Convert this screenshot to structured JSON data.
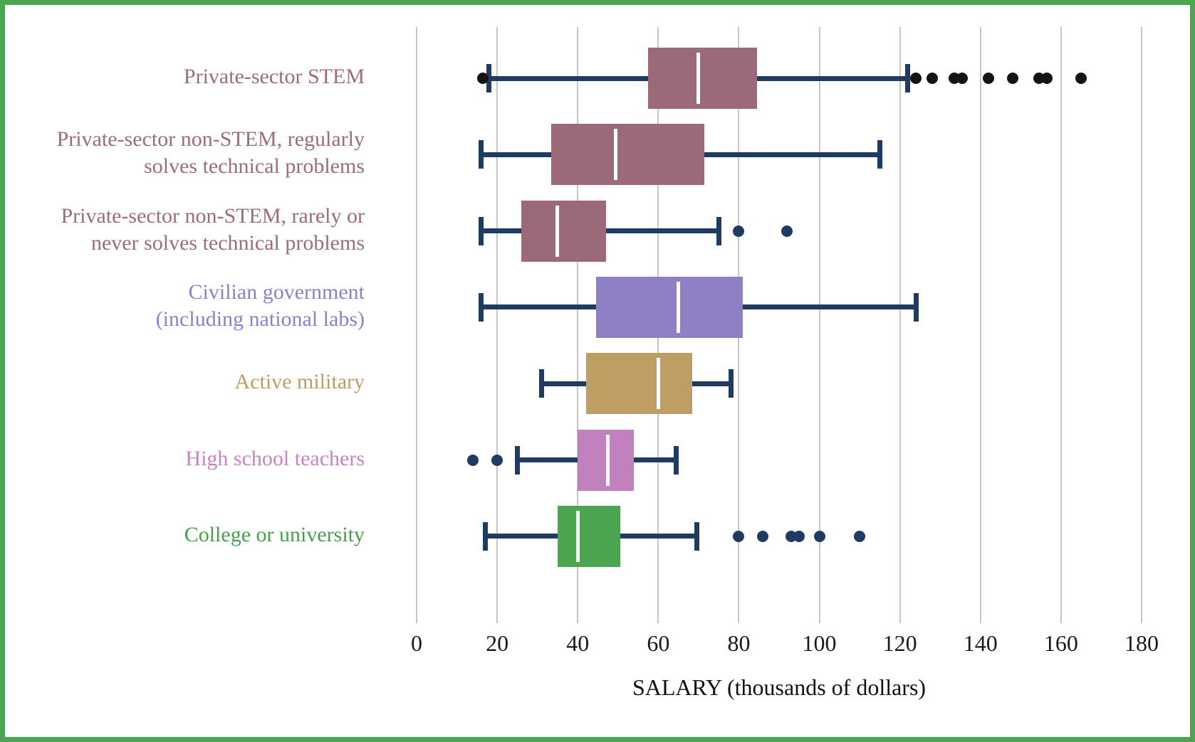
{
  "frame": {
    "border_color": "#4BA552",
    "background": "#ffffff"
  },
  "axis": {
    "title": "SALARY (thousands of dollars)",
    "ticks": [
      0,
      20,
      40,
      60,
      80,
      100,
      120,
      140,
      160,
      180
    ],
    "gridline_color": "#C6C6C6",
    "tick_label_color": "#1a1a1a"
  },
  "chart_data": {
    "type": "boxplot",
    "orientation": "horizontal",
    "title": "",
    "xlabel": "SALARY (thousands of dollars)",
    "ylabel": "",
    "xlim": [
      0,
      180
    ],
    "x_ticks": [
      0,
      20,
      40,
      60,
      80,
      100,
      120,
      140,
      160,
      180
    ],
    "grid": "vertical",
    "whisker_color": "#1F3A63",
    "median_color": "#ffffff",
    "series": [
      {
        "label": "Private-sector STEM",
        "label_lines": [
          "Private-sector STEM"
        ],
        "box_color": "#9A6A79",
        "label_color": "#9B6C7C",
        "outlier_color": "#141414",
        "whisker_low": 18,
        "q1": 57.5,
        "median": 70,
        "q3": 84.5,
        "whisker_high": 122,
        "outliers_low": [
          16.5
        ],
        "outliers_high": [
          124,
          128,
          133.5,
          135.5,
          142,
          148,
          154.5,
          156.5,
          165
        ]
      },
      {
        "label": "Private-sector non-STEM, regularly solves technical problems",
        "label_lines": [
          "Private-sector non-STEM, regularly",
          "solves technical problems"
        ],
        "box_color": "#9A6A79",
        "label_color": "#9B6C7C",
        "outlier_color": "#1F3A63",
        "whisker_low": 16,
        "q1": 33.5,
        "median": 49.5,
        "q3": 71.5,
        "whisker_high": 115,
        "outliers_low": [],
        "outliers_high": []
      },
      {
        "label": "Private-sector non-STEM, rarely or never solves technical problems",
        "label_lines": [
          "Private-sector non-STEM, rarely or",
          "never solves technical problems"
        ],
        "box_color": "#9A6A79",
        "label_color": "#9B6C7C",
        "outlier_color": "#1F3A63",
        "whisker_low": 16,
        "q1": 26,
        "median": 35,
        "q3": 47,
        "whisker_high": 75,
        "outliers_low": [],
        "outliers_high": [
          80,
          92
        ]
      },
      {
        "label": "Civilian government (including national labs)",
        "label_lines": [
          "Civilian government",
          "(including national labs)"
        ],
        "box_color": "#8F80C5",
        "label_color": "#8B80C9",
        "outlier_color": "#1F3A63",
        "whisker_low": 16,
        "q1": 44.5,
        "median": 65,
        "q3": 81,
        "whisker_high": 124,
        "outliers_low": [],
        "outliers_high": []
      },
      {
        "label": "Active military",
        "label_lines": [
          "Active military"
        ],
        "box_color": "#BF9E63",
        "label_color": "#BD9C62",
        "outlier_color": "#1F3A63",
        "whisker_low": 31,
        "q1": 42,
        "median": 60,
        "q3": 68.5,
        "whisker_high": 78,
        "outliers_low": [],
        "outliers_high": []
      },
      {
        "label": "High school teachers",
        "label_lines": [
          "High school teachers"
        ],
        "box_color": "#C181BF",
        "label_color": "#C584C3",
        "outlier_color": "#1F3A63",
        "whisker_low": 25,
        "q1": 40,
        "median": 47.5,
        "q3": 54,
        "whisker_high": 64.5,
        "outliers_low": [
          14,
          20
        ],
        "outliers_high": []
      },
      {
        "label": "College or university",
        "label_lines": [
          "College or university"
        ],
        "box_color": "#4BA44F",
        "label_color": "#44A04B",
        "outlier_color": "#1F3A63",
        "whisker_low": 17,
        "q1": 35,
        "median": 40,
        "q3": 50.5,
        "whisker_high": 69.5,
        "outliers_low": [],
        "outliers_high": [
          80,
          86,
          93,
          95,
          100,
          110
        ]
      }
    ]
  }
}
